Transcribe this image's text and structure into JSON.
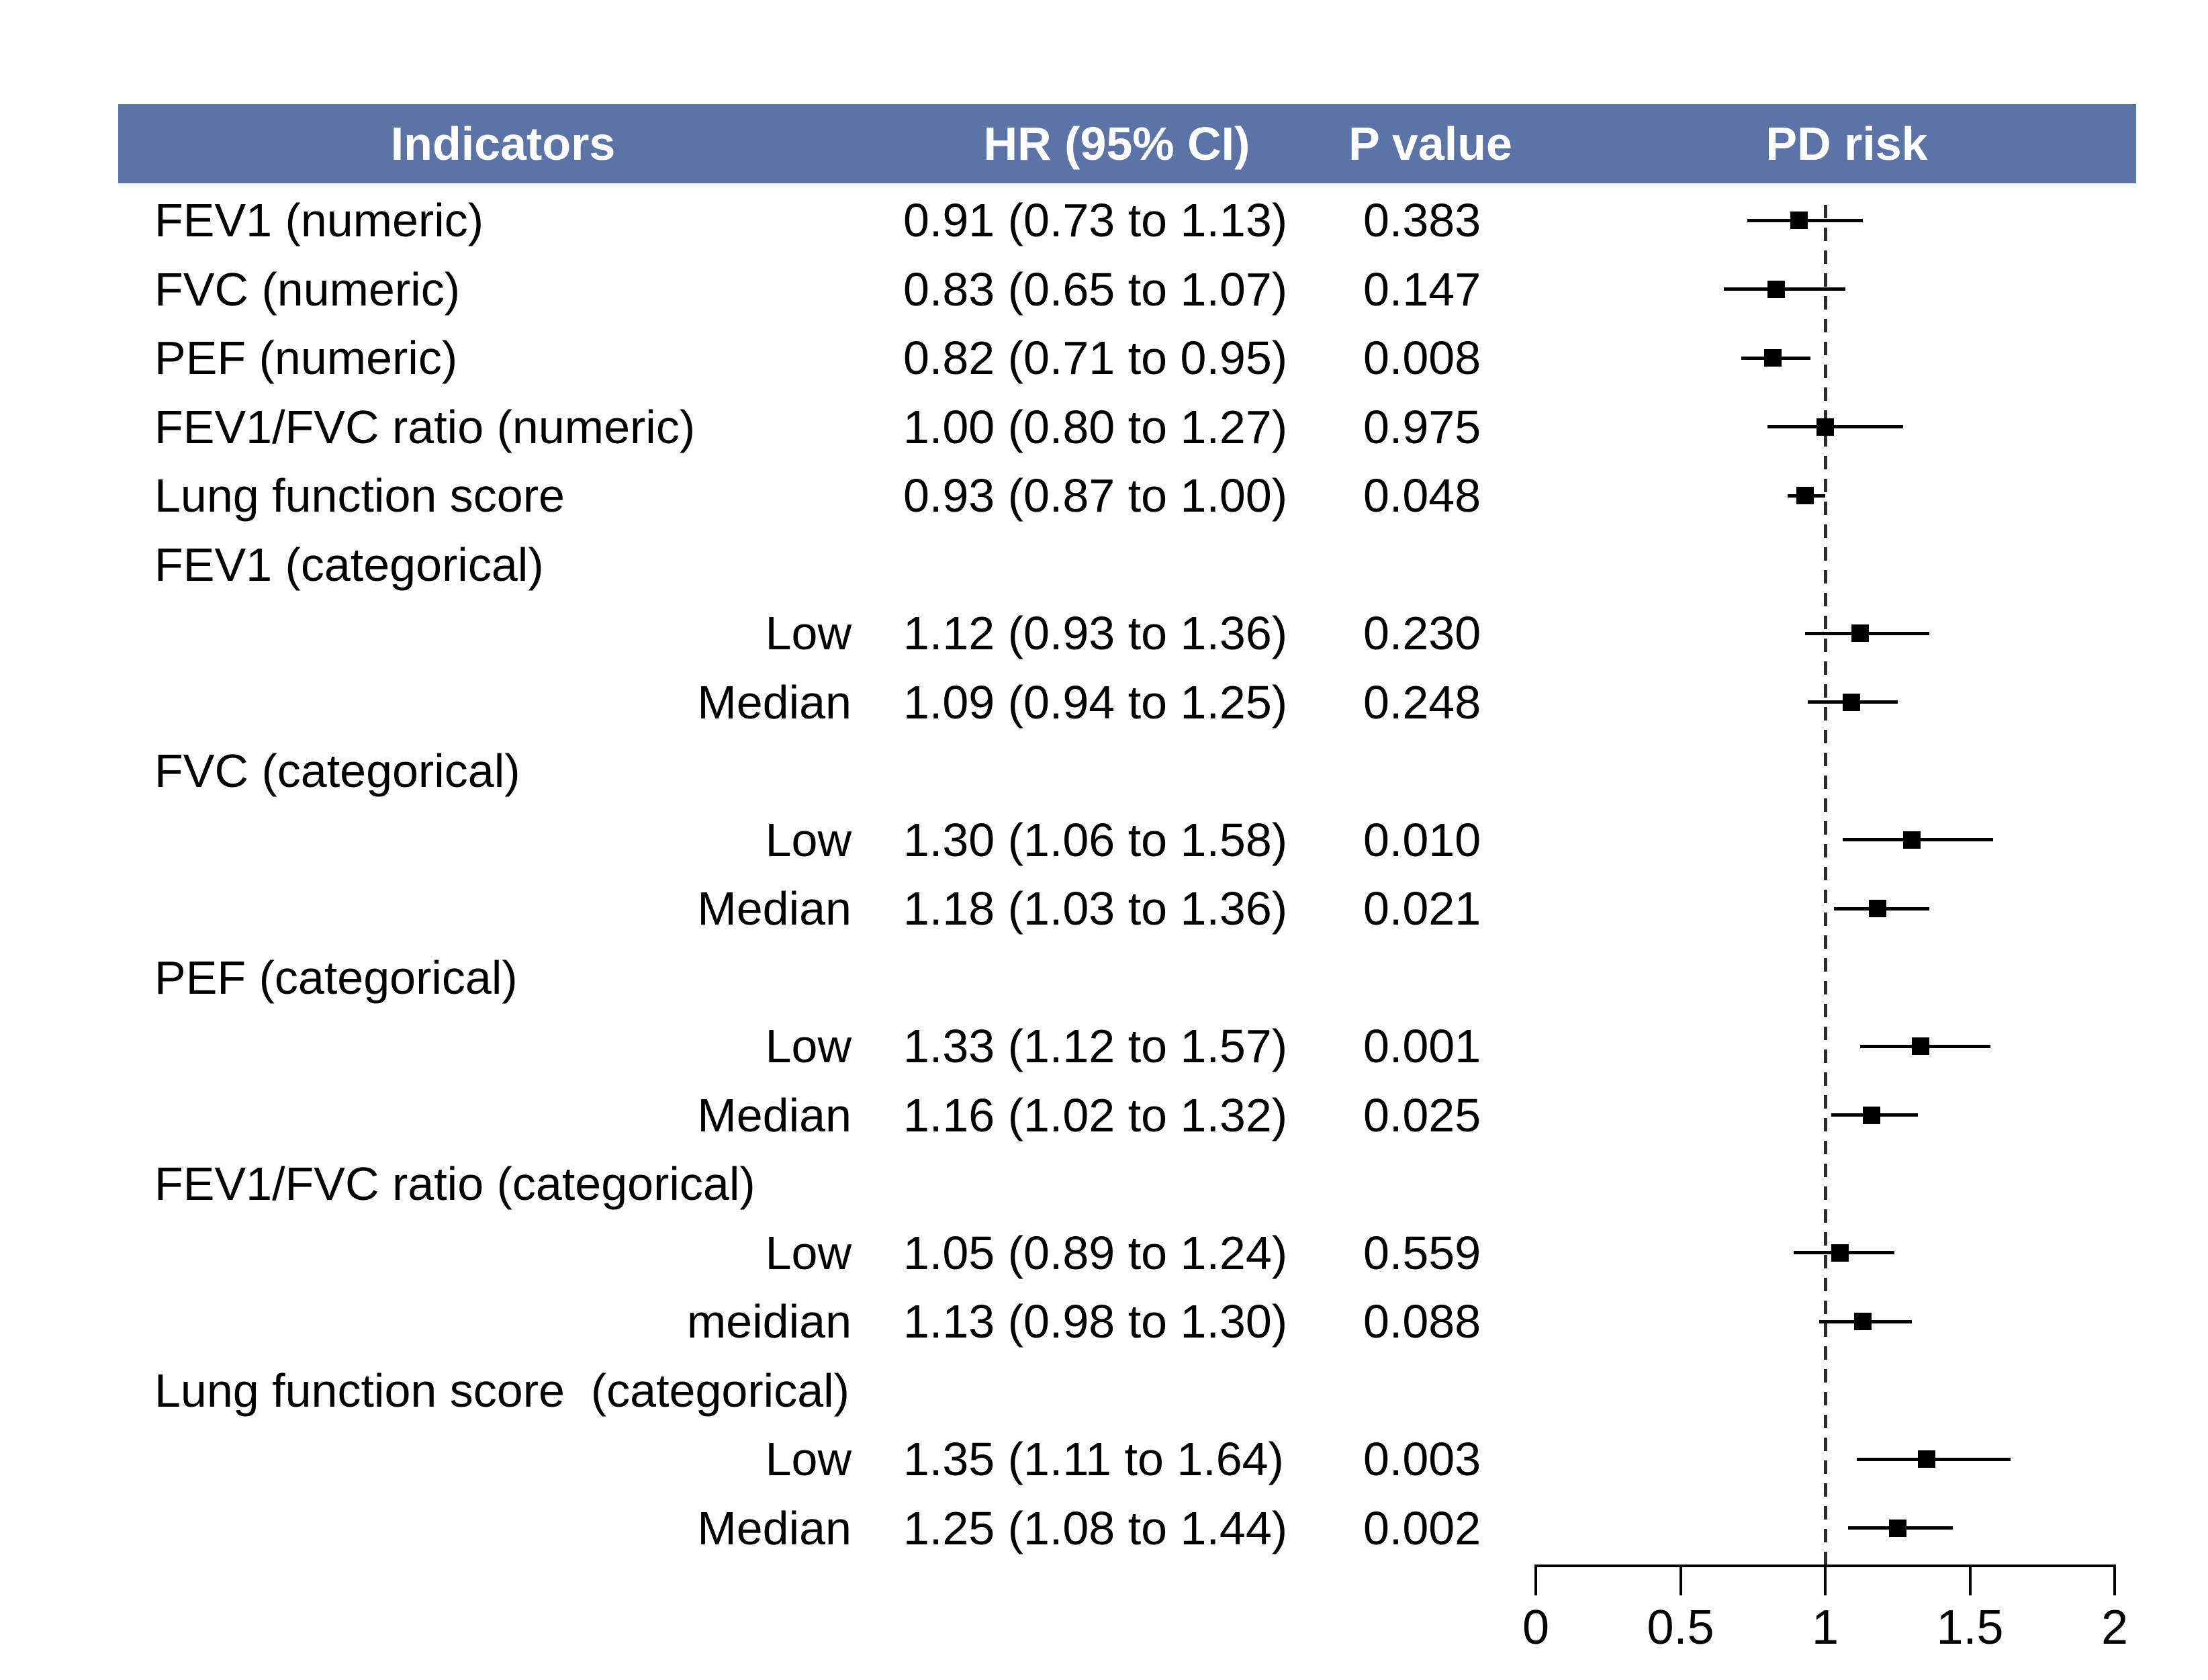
{
  "header": {
    "columns": [
      {
        "label": "Indicators"
      },
      {
        "label": "HR (95% CI)"
      },
      {
        "label": "P value"
      },
      {
        "label": "PD risk"
      }
    ]
  },
  "colors": {
    "header_bg": "#5B73A6",
    "header_text": "#ffffff",
    "text": "#000000",
    "marker": "#000000",
    "reference_line": "#2b2b2b"
  },
  "chart_data": {
    "type": "forest",
    "title": "",
    "columns": [
      "Indicators",
      "HR (95% CI)",
      "P value",
      "PD risk"
    ],
    "axis": {
      "label": "",
      "min": 0,
      "max": 2,
      "tick_values": [
        0,
        0.5,
        1,
        1.5,
        2
      ],
      "tick_labels": [
        "0",
        "0.5",
        "1",
        "1.5",
        "2"
      ],
      "reference_line": 1
    },
    "rows": [
      {
        "type": "item",
        "label": "FEV1 (numeric)",
        "hr_text": "0.91 (0.73 to 1.13)",
        "p_text": "0.383",
        "hr": 0.91,
        "ci_low": 0.73,
        "ci_high": 1.13
      },
      {
        "type": "item",
        "label": "FVC (numeric)",
        "hr_text": "0.83 (0.65 to 1.07)",
        "p_text": "0.147",
        "hr": 0.83,
        "ci_low": 0.65,
        "ci_high": 1.07
      },
      {
        "type": "item",
        "label": "PEF (numeric)",
        "hr_text": "0.82 (0.71 to 0.95)",
        "p_text": "0.008",
        "hr": 0.82,
        "ci_low": 0.71,
        "ci_high": 0.95
      },
      {
        "type": "item",
        "label": "FEV1/FVC ratio (numeric)",
        "hr_text": "1.00 (0.80 to 1.27)",
        "p_text": "0.975",
        "hr": 1.0,
        "ci_low": 0.8,
        "ci_high": 1.27
      },
      {
        "type": "item",
        "label": "Lung function score",
        "hr_text": "0.93 (0.87 to 1.00)",
        "p_text": "0.048",
        "hr": 0.93,
        "ci_low": 0.87,
        "ci_high": 1.0
      },
      {
        "type": "group",
        "label": "FEV1 (categorical)"
      },
      {
        "type": "sub",
        "label": "Low",
        "hr_text": "1.12 (0.93 to 1.36)",
        "p_text": "0.230",
        "hr": 1.12,
        "ci_low": 0.93,
        "ci_high": 1.36
      },
      {
        "type": "sub",
        "label": "Median",
        "hr_text": "1.09 (0.94 to 1.25)",
        "p_text": "0.248",
        "hr": 1.09,
        "ci_low": 0.94,
        "ci_high": 1.25
      },
      {
        "type": "group",
        "label": "FVC (categorical)"
      },
      {
        "type": "sub",
        "label": "Low",
        "hr_text": "1.30 (1.06 to 1.58)",
        "p_text": "0.010",
        "hr": 1.3,
        "ci_low": 1.06,
        "ci_high": 1.58
      },
      {
        "type": "sub",
        "label": "Median",
        "hr_text": "1.18 (1.03 to 1.36)",
        "p_text": "0.021",
        "hr": 1.18,
        "ci_low": 1.03,
        "ci_high": 1.36
      },
      {
        "type": "group",
        "label": "PEF (categorical)"
      },
      {
        "type": "sub",
        "label": "Low",
        "hr_text": "1.33 (1.12 to 1.57)",
        "p_text": "0.001",
        "hr": 1.33,
        "ci_low": 1.12,
        "ci_high": 1.57
      },
      {
        "type": "sub",
        "label": "Median",
        "hr_text": "1.16 (1.02 to 1.32)",
        "p_text": "0.025",
        "hr": 1.16,
        "ci_low": 1.02,
        "ci_high": 1.32
      },
      {
        "type": "group",
        "label": "FEV1/FVC ratio (categorical)"
      },
      {
        "type": "sub",
        "label": "Low",
        "hr_text": "1.05 (0.89 to 1.24)",
        "p_text": "0.559",
        "hr": 1.05,
        "ci_low": 0.89,
        "ci_high": 1.24
      },
      {
        "type": "sub",
        "label": "meidian",
        "hr_text": "1.13 (0.98 to 1.30)",
        "p_text": "0.088",
        "hr": 1.13,
        "ci_low": 0.98,
        "ci_high": 1.3
      },
      {
        "type": "group",
        "label": "Lung function score  (categorical)"
      },
      {
        "type": "sub",
        "label": "Low",
        "hr_text": "1.35 (1.11 to 1.64)",
        "p_text": "0.003",
        "hr": 1.35,
        "ci_low": 1.11,
        "ci_high": 1.64
      },
      {
        "type": "sub",
        "label": "Median",
        "hr_text": "1.25 (1.08 to 1.44)",
        "p_text": "0.002",
        "hr": 1.25,
        "ci_low": 1.08,
        "ci_high": 1.44
      }
    ]
  }
}
